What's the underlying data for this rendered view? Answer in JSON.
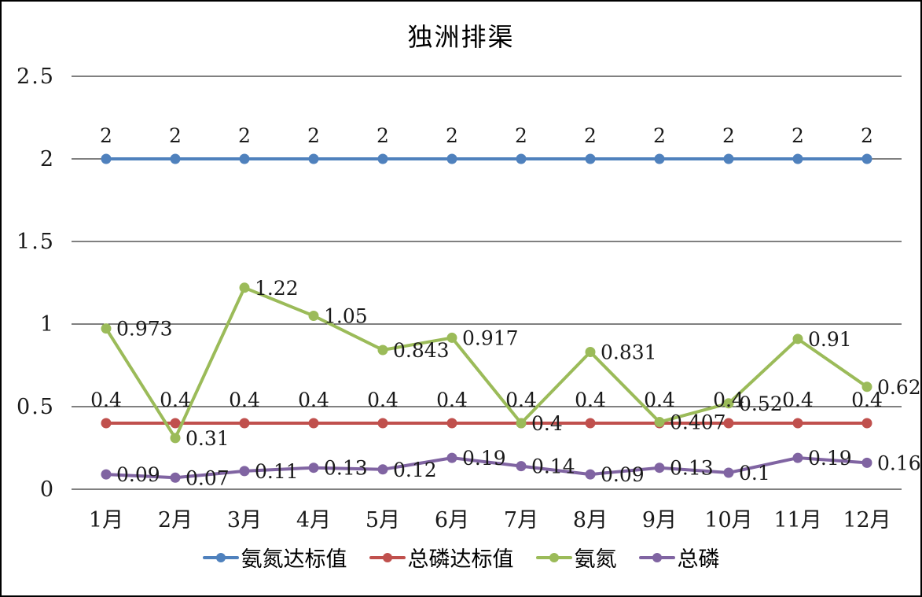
{
  "title": "独洲排渠",
  "chart_data": {
    "type": "line",
    "title": "独洲排渠",
    "categories": [
      "1月",
      "2月",
      "3月",
      "4月",
      "5月",
      "6月",
      "7月",
      "8月",
      "9月",
      "10月",
      "11月",
      "12月"
    ],
    "series": [
      {
        "name": "氨氮达标值",
        "color": "#4F81BD",
        "values": [
          2,
          2,
          2,
          2,
          2,
          2,
          2,
          2,
          2,
          2,
          2,
          2
        ],
        "label_position": "above"
      },
      {
        "name": "总磷达标值",
        "color": "#C0504D",
        "values": [
          0.4,
          0.4,
          0.4,
          0.4,
          0.4,
          0.4,
          0.4,
          0.4,
          0.4,
          0.4,
          0.4,
          0.4
        ],
        "label_position": "above"
      },
      {
        "name": "氨氮",
        "color": "#9BBB59",
        "values": [
          0.973,
          0.31,
          1.22,
          1.05,
          0.843,
          0.917,
          0.4,
          0.831,
          0.407,
          0.52,
          0.91,
          0.62
        ],
        "label_position": "right"
      },
      {
        "name": "总磷",
        "color": "#8064A2",
        "values": [
          0.09,
          0.07,
          0.11,
          0.13,
          0.12,
          0.19,
          0.14,
          0.09,
          0.13,
          0.1,
          0.19,
          0.16
        ],
        "label_position": "right"
      }
    ],
    "xlabel": "",
    "ylabel": "",
    "ylim": [
      0,
      2.5
    ],
    "yticks": [
      0,
      0.5,
      1,
      1.5,
      2,
      2.5
    ],
    "grid": true,
    "gridline_color": "#000000",
    "label_color": "#1a1a1a",
    "legend_position": "bottom"
  }
}
